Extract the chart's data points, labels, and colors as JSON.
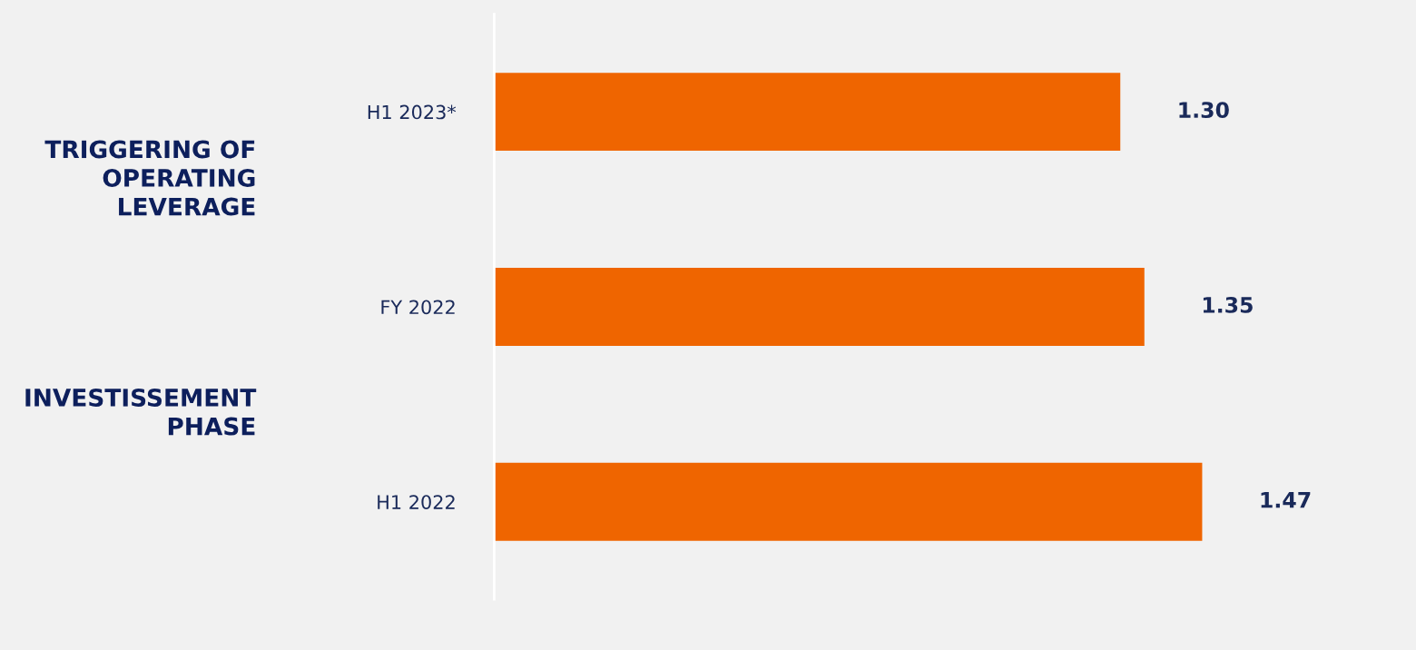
{
  "chart_data": {
    "type": "bar",
    "orientation": "horizontal",
    "categories": [
      "H1 2023*",
      "FY 2022",
      "H1 2022"
    ],
    "values": [
      1.3,
      1.35,
      1.47
    ],
    "value_labels": [
      "1.30",
      "1.35",
      "1.47"
    ],
    "color": "#ef6500",
    "tick_labels": "y",
    "grid": false,
    "legend": false,
    "annotations": [
      "TRIGGERING OF\nOPERATING\nLEVERAGE",
      "INVESTISSEMENT\nPHASE"
    ]
  }
}
